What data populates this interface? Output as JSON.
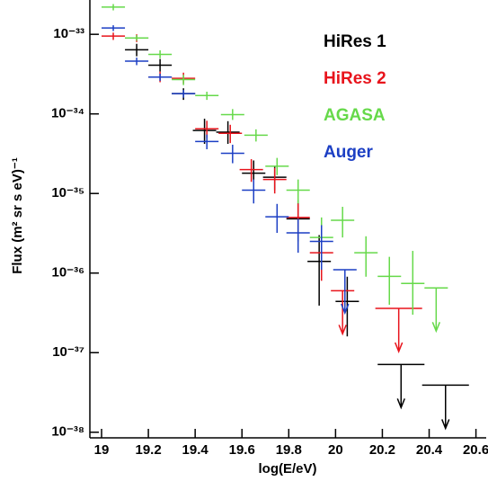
{
  "chart_data": {
    "type": "errorbar",
    "xlabel": "log(E/eV)",
    "ylabel": "Flux (m² sr s eV)⁻¹",
    "xlim": [
      18.95,
      20.64
    ],
    "ylim": [
      8.5e-39,
      2.7e-33
    ],
    "log_y": true,
    "legend": "upper right",
    "xticks": [
      19,
      19.2,
      19.4,
      19.6,
      19.8,
      20,
      20.2,
      20.4,
      20.6
    ],
    "yticks": [
      {
        "value": 1e-38,
        "label": "10⁻³⁸"
      },
      {
        "value": 1e-37,
        "label": "10⁻³⁷"
      },
      {
        "value": 1e-36,
        "label": "10⁻³⁶"
      },
      {
        "value": 1e-35,
        "label": "10⁻³⁵"
      },
      {
        "value": 1e-34,
        "label": "10⁻³⁴"
      },
      {
        "value": 1e-33,
        "label": "10⁻³³"
      }
    ],
    "series": [
      {
        "name": "HiRes 1",
        "color": "#000000",
        "x": [
          19.15,
          19.25,
          19.35,
          19.44,
          19.54,
          19.65,
          19.74,
          19.84,
          19.93,
          20.05,
          20.28,
          20.47
        ],
        "values": [
          6.4e-34,
          4.1e-34,
          1.8e-34,
          6.2e-35,
          5.9e-35,
          1.8e-35,
          1.6e-35,
          4.8e-36,
          1.4e-36,
          4.4e-37,
          7.1e-38,
          3.9e-38
        ],
        "ylow": [
          5.3e-34,
          3.4e-34,
          1.5e-34,
          4.2e-35,
          4.2e-35,
          1.2e-35,
          1.1e-35,
          2.5e-36,
          3.9e-37,
          1.6e-37,
          null,
          null
        ],
        "yhigh": [
          7.6e-34,
          4.9e-34,
          2.1e-34,
          8.7e-35,
          8.1e-35,
          2.6e-35,
          2.2e-35,
          8.3e-36,
          3e-36,
          9e-37,
          null,
          null
        ],
        "xerr": [
          0.05,
          0.05,
          0.05,
          0.05,
          0.05,
          0.05,
          0.05,
          0.05,
          0.05,
          0.05,
          0.1,
          0.1
        ],
        "upper_limit": [
          false,
          false,
          false,
          false,
          false,
          false,
          false,
          false,
          false,
          false,
          true,
          true
        ]
      },
      {
        "name": "HiRes 2",
        "color": "#e8141c",
        "x": [
          19.05,
          19.15,
          19.25,
          19.35,
          19.45,
          19.55,
          19.64,
          19.74,
          19.84,
          19.94,
          20.03,
          20.27
        ],
        "values": [
          9.5e-34,
          9e-34,
          2.9e-34,
          2.8e-34,
          6.5e-35,
          5.7e-35,
          2e-35,
          1.5e-35,
          5e-36,
          1.8e-36,
          6e-37,
          3.6e-37
        ],
        "ylow": [
          8.5e-34,
          8e-34,
          2.5e-34,
          2.4e-34,
          5e-35,
          4.3e-35,
          1.4e-35,
          1e-35,
          3e-36,
          8e-37,
          null,
          null
        ],
        "yhigh": [
          1.05e-33,
          1e-33,
          3.4e-34,
          3.3e-34,
          8.2e-35,
          7.3e-35,
          2.7e-35,
          2.1e-35,
          7.5e-36,
          3.2e-36,
          null,
          null
        ],
        "xerr": [
          0.05,
          0.05,
          0.05,
          0.05,
          0.05,
          0.05,
          0.05,
          0.05,
          0.05,
          0.05,
          0.05,
          0.1
        ],
        "upper_limit": [
          false,
          false,
          false,
          false,
          false,
          false,
          false,
          false,
          false,
          false,
          true,
          true
        ]
      },
      {
        "name": "AGASA",
        "color": "#66d94a",
        "x": [
          19.05,
          19.15,
          19.25,
          19.35,
          19.45,
          19.56,
          19.66,
          19.75,
          19.84,
          19.94,
          20.03,
          20.13,
          20.23,
          20.33,
          20.43
        ],
        "values": [
          2.2e-33,
          9e-34,
          5.6e-34,
          2.7e-34,
          1.7e-34,
          9.8e-35,
          5.4e-35,
          2.2e-35,
          1.1e-35,
          2.8e-36,
          4.6e-36,
          1.8e-36,
          9.1e-37,
          7.4e-37,
          6.5e-37
        ],
        "ylow": [
          2e-33,
          8.3e-34,
          5e-34,
          2.3e-34,
          1.5e-34,
          8.4e-35,
          4.5e-35,
          1.7e-35,
          7.5e-36,
          1.3e-36,
          2.8e-36,
          9e-37,
          4e-37,
          3e-37,
          null
        ],
        "yhigh": [
          2.4e-33,
          9.8e-34,
          6.3e-34,
          3.1e-34,
          1.9e-34,
          1.15e-34,
          6.4e-35,
          2.8e-35,
          1.5e-35,
          5e-36,
          6.8e-36,
          2.9e-36,
          1.6e-36,
          1.9e-36,
          null
        ],
        "xerr": [
          0.05,
          0.05,
          0.05,
          0.05,
          0.05,
          0.05,
          0.05,
          0.05,
          0.05,
          0.05,
          0.05,
          0.05,
          0.05,
          0.05,
          0.05
        ],
        "upper_limit": [
          false,
          false,
          false,
          false,
          false,
          false,
          false,
          false,
          false,
          false,
          false,
          false,
          false,
          false,
          true
        ]
      },
      {
        "name": "Auger",
        "color": "#1c3fc4",
        "x": [
          19.05,
          19.15,
          19.25,
          19.35,
          19.45,
          19.56,
          19.65,
          19.75,
          19.84,
          19.94,
          20.04
        ],
        "values": [
          1.2e-33,
          4.6e-34,
          2.9e-34,
          1.8e-34,
          4.5e-35,
          3.2e-35,
          1.1e-35,
          5.1e-36,
          3.2e-36,
          2.5e-36,
          1.1e-36
        ],
        "ylow": [
          1.1e-33,
          4.1e-34,
          2.6e-34,
          1.6e-34,
          3.6e-35,
          2.4e-35,
          7.5e-36,
          3.2e-36,
          1.8e-36,
          1.1e-36,
          null
        ],
        "yhigh": [
          1.3e-33,
          5.1e-34,
          3.2e-34,
          2e-34,
          5.5e-35,
          4.1e-35,
          1.5e-35,
          7.4e-36,
          4.8e-36,
          4e-36,
          null
        ],
        "xerr": [
          0.05,
          0.05,
          0.05,
          0.05,
          0.05,
          0.05,
          0.05,
          0.05,
          0.05,
          0.05,
          0.05
        ],
        "upper_limit": [
          false,
          false,
          false,
          false,
          false,
          false,
          false,
          false,
          false,
          false,
          true
        ]
      }
    ]
  }
}
